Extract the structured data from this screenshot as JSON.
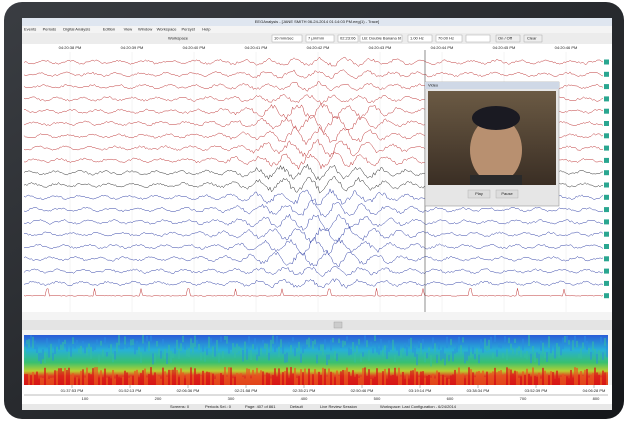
{
  "window_title": "EEGAnalysis - [JANE SMITH 06-24-2014 01:14:03 PM.eeg(1) - Trace]",
  "menu": [
    "Events",
    "Periods",
    "Digital Analysis",
    "Edition",
    "View",
    "Window",
    "Workspace",
    "Persyst",
    "Help"
  ],
  "toolbar": {
    "workspace": "Workspace",
    "speed": "10 mm/sec",
    "gain": "7 µV/mm",
    "time": "02:23:06",
    "montage": "LB: Double Banana bt",
    "low_filter": "1.00 Hz",
    "high_filter": "70.00 Hz",
    "toggle": "On / Off",
    "clear": "Clear"
  },
  "timeline": [
    "04:20:38 PM",
    "04:20:39 PM",
    "04:20:40 PM",
    "04:20:41 PM",
    "04:20:42 PM",
    "04:20:43 PM",
    "04:20:44 PM",
    "04:20:45 PM",
    "04:20:46 PM"
  ],
  "video": {
    "title": "Video",
    "buttons": [
      "Play",
      "Pause"
    ]
  },
  "spectrogram": {
    "times": [
      "01:37:53 PM",
      "01:52:13 PM",
      "02:06:36 PM",
      "02:21:58 PM",
      "02:35:21 PM",
      "02:50:46 PM",
      "03:19:14 PM",
      "03:38:34 PM",
      "03:52:39 PM",
      "04:06:28 PM"
    ],
    "pages": [
      "100",
      "200",
      "300",
      "400",
      "500",
      "600",
      "700",
      "800"
    ]
  },
  "status": [
    "Screens: 0",
    "Periods Sel.: 0",
    "Page: 407 of 861",
    "Default",
    "Live Review Session",
    "Workspace: Last Configuration - 6/24/2014"
  ]
}
